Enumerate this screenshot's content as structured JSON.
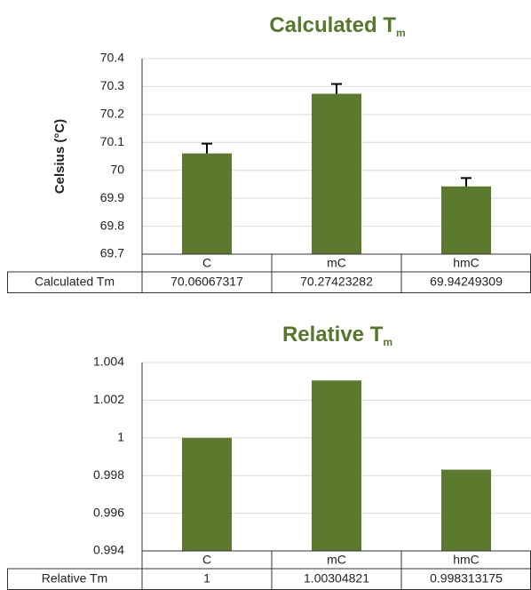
{
  "chart_data": [
    {
      "type": "bar",
      "title": "Calculated T",
      "title_subscript": "m",
      "y_label": "Celsius (°C)",
      "categories": [
        "C",
        "mC",
        "hmC"
      ],
      "series": [
        {
          "name": "Calculated Tm",
          "color": "#5b7a2e",
          "values": [
            70.06067317,
            70.27423282,
            69.94249309
          ],
          "errors": [
            0.035,
            0.035,
            0.03
          ]
        }
      ],
      "ylim": [
        69.7,
        70.4
      ],
      "yticks": [
        69.7,
        69.8,
        69.9,
        70,
        70.1,
        70.2,
        70.3,
        70.4
      ],
      "grid": true
    },
    {
      "type": "bar",
      "title": "Relative T",
      "title_subscript": "m",
      "categories": [
        "C",
        "mC",
        "hmC"
      ],
      "series": [
        {
          "name": "Relative Tm",
          "color": "#5b7a2e",
          "values": [
            1,
            1.00304821,
            0.998313175
          ]
        }
      ],
      "ylim": [
        0.994,
        1.004
      ],
      "yticks": [
        0.994,
        0.996,
        0.998,
        1,
        1.002,
        1.004
      ],
      "grid": true
    }
  ]
}
